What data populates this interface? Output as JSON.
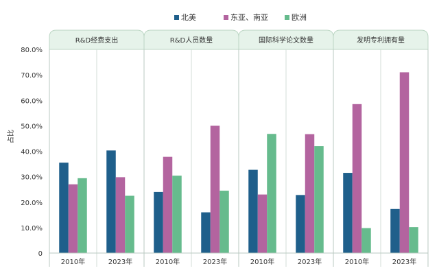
{
  "chart_data": {
    "type": "bar",
    "ylabel": "占比",
    "ylim": [
      0,
      80
    ],
    "y_ticks": [
      "0",
      "10.0%",
      "20.0%",
      "30.0%",
      "40.0%",
      "50.0%",
      "60.0%",
      "70.0%",
      "80.0%"
    ],
    "grid": false,
    "legend_position": "top-center",
    "groups": [
      "R&D经费支出",
      "R&D人员数量",
      "国际科学论文数量",
      "发明专利拥有量"
    ],
    "categories": [
      "2010年",
      "2023年",
      "2010年",
      "2023年",
      "2010年",
      "2023年",
      "2010年",
      "2023年"
    ],
    "series": [
      {
        "name": "北美",
        "color": "#1f5f8b",
        "values": [
          35.5,
          40.3,
          24.0,
          16.0,
          32.7,
          22.8,
          31.5,
          17.3
        ]
      },
      {
        "name": "东亚、南亚",
        "color": "#b3649f",
        "values": [
          27.0,
          29.8,
          37.8,
          50.0,
          23.0,
          46.7,
          58.5,
          71.0
        ]
      },
      {
        "name": "欧洲",
        "color": "#66bb8d",
        "values": [
          29.4,
          22.5,
          30.4,
          24.5,
          46.8,
          42.0,
          9.8,
          10.2
        ]
      }
    ]
  }
}
